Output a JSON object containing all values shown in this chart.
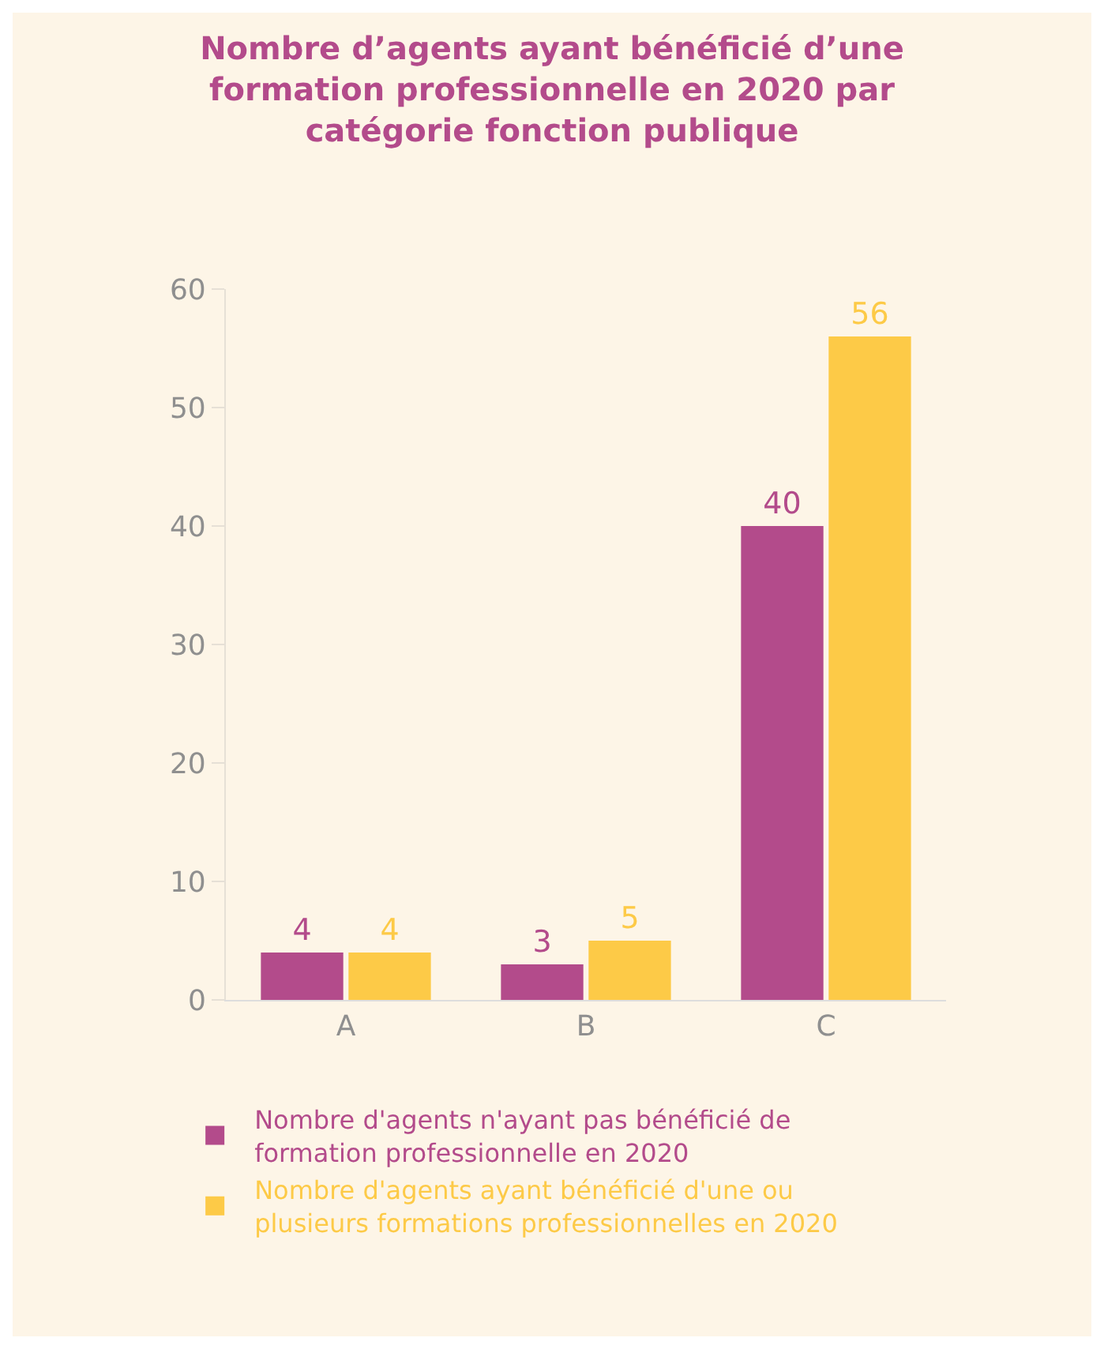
{
  "chart_data": {
    "type": "bar",
    "title": "Nombre d’agents ayant bénéficié d’une formation professionnelle en 2020 par catégorie fonction publique",
    "categories": [
      "A",
      "B",
      "C"
    ],
    "series": [
      {
        "name": "Nombre d'agents n'ayant pas bénéficié de formation professionnelle en 2020",
        "color": "#b34b8b",
        "values": [
          4,
          3,
          40
        ]
      },
      {
        "name": "Nombre d'agents ayant bénéficié d'une ou plusieurs formations professionnelles en 2020",
        "color": "#fdca47",
        "values": [
          4,
          5,
          56
        ]
      }
    ],
    "ylim": [
      0,
      60
    ],
    "yticks": [
      0,
      10,
      20,
      30,
      40,
      50,
      60
    ],
    "grid": false,
    "legend": "bottom",
    "data_labels": true
  }
}
